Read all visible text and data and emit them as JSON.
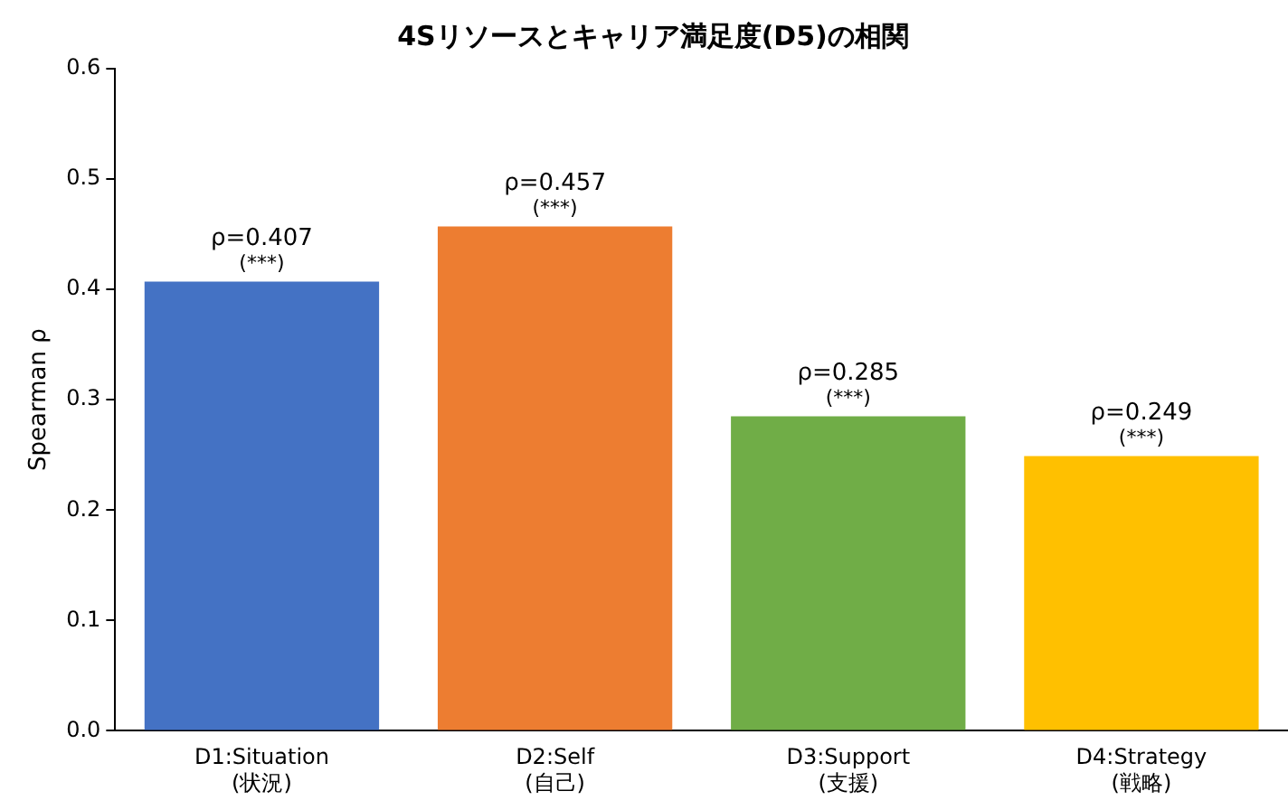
{
  "chart_data": {
    "type": "bar",
    "title": "4Sリソースとキャリア満足度(D5)の相関",
    "ylabel": "Spearman ρ",
    "categories": [
      "D1:Situation\n(状況)",
      "D2:Self\n(自己)",
      "D3:Support\n(支援)",
      "D4:Strategy\n(戦略)"
    ],
    "values": [
      0.407,
      0.457,
      0.285,
      0.249
    ],
    "colors": [
      "#4472c4",
      "#ed7d31",
      "#70ad47",
      "#ffc000"
    ],
    "value_labels": [
      "ρ=0.407\n(***)",
      "ρ=0.457\n(***)",
      "ρ=0.285\n(***)",
      "ρ=0.249\n(***)"
    ],
    "ylim": [
      0,
      0.6
    ],
    "yticks": [
      {
        "value": 0,
        "label": "0.0"
      },
      0.1,
      0.2,
      0.3,
      0.4,
      0.5,
      0.6
    ],
    "grid": false,
    "legend": false
  }
}
